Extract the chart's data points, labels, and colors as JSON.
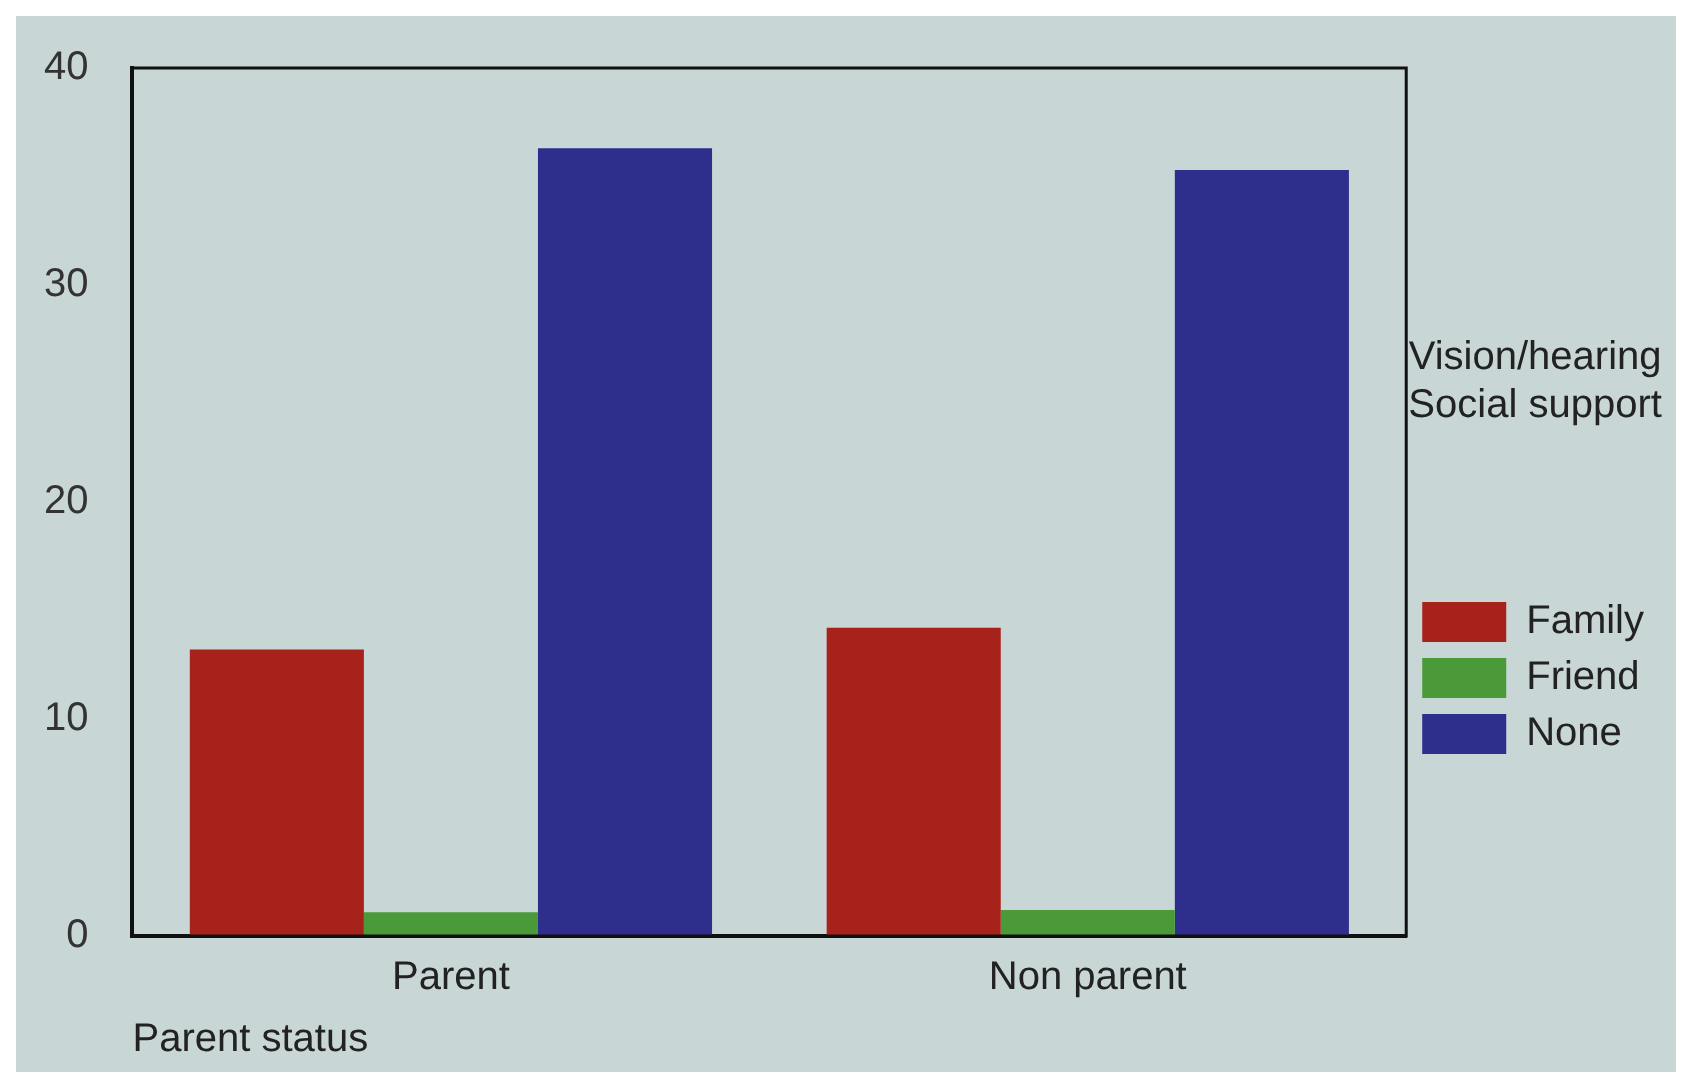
{
  "chart_data": {
    "type": "bar",
    "xlabel": "Parent status",
    "legend_title": "Vision/hearing\nSocial support",
    "categories": [
      "Parent",
      "Non parent"
    ],
    "series": [
      {
        "name": "Family",
        "color": "#a8221c",
        "values": [
          13.2,
          14.2
        ]
      },
      {
        "name": "Friend",
        "color": "#4a9a3a",
        "values": [
          1.1,
          1.2
        ]
      },
      {
        "name": "None",
        "color": "#2e2e8c",
        "values": [
          36.3,
          35.3
        ]
      }
    ],
    "ylim": [
      0,
      40
    ],
    "yticks": [
      0,
      10,
      20,
      30,
      40
    ],
    "grid": false,
    "legend": "right"
  }
}
